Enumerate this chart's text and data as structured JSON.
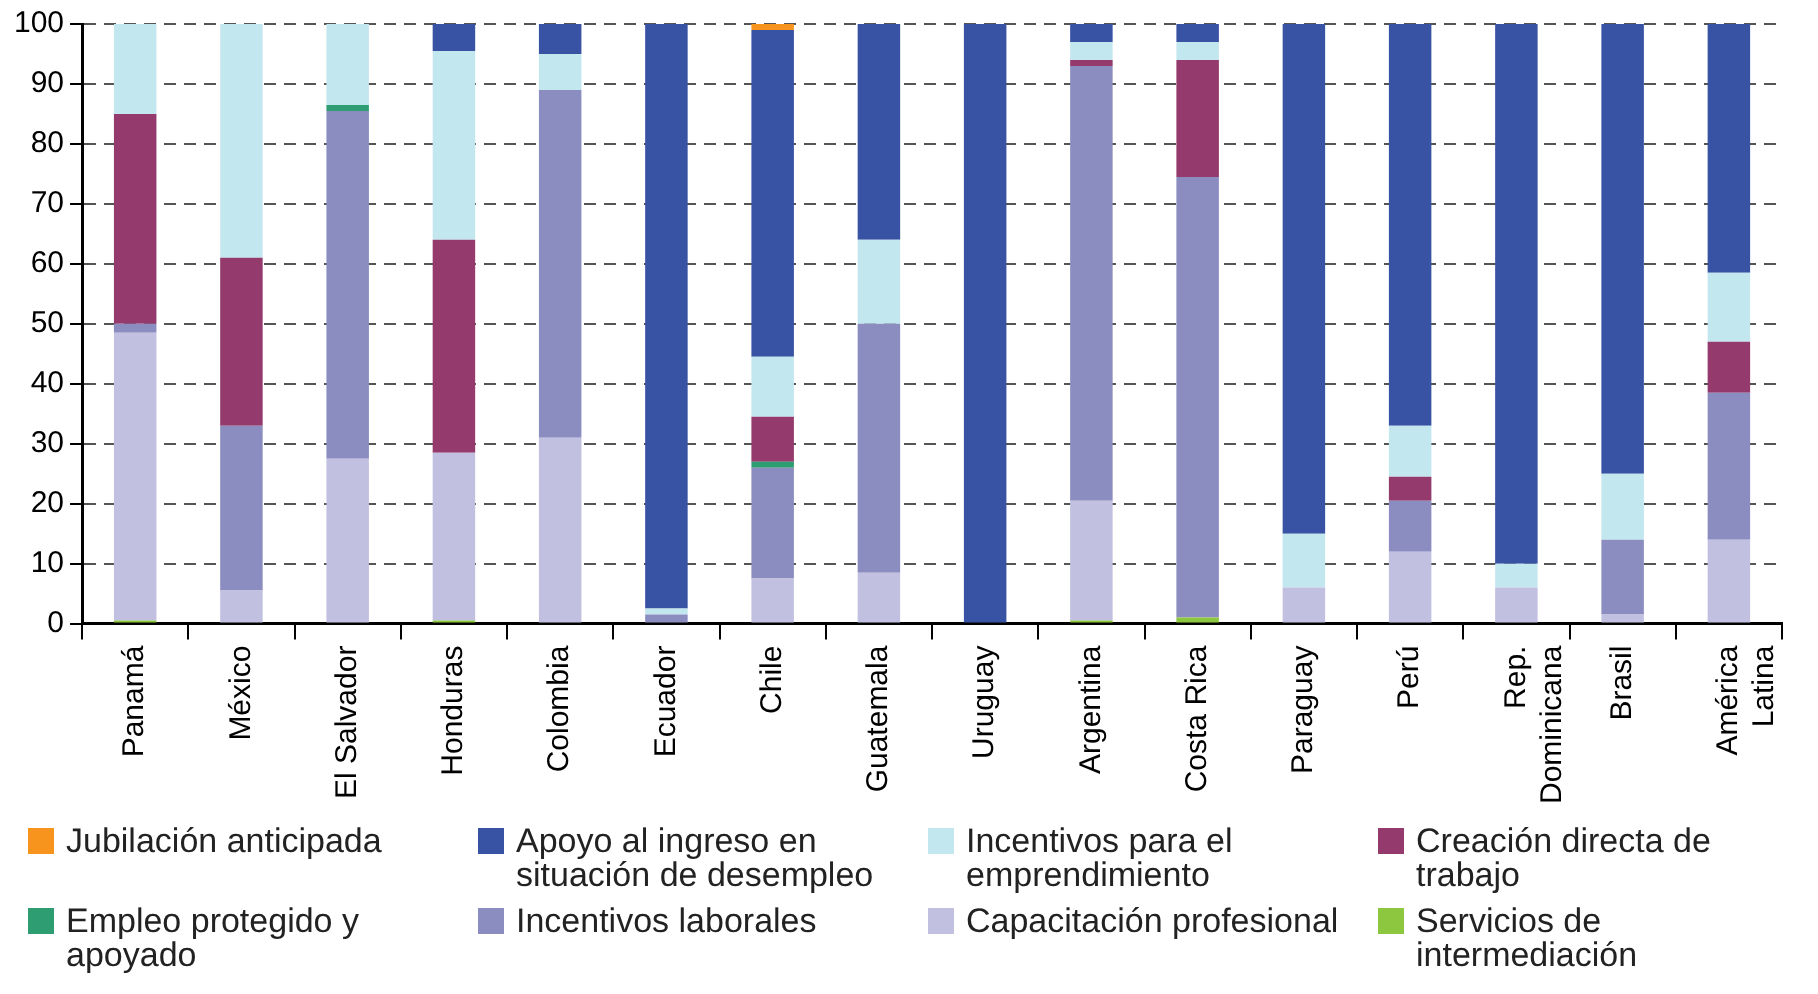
{
  "chart_data": {
    "type": "bar",
    "stacked": true,
    "categories": [
      "Panamá",
      "México",
      "El Salvador",
      "Honduras",
      "Colombia",
      "Ecuador",
      "Chile",
      "Guatemala",
      "Uruguay",
      "Argentina",
      "Costa Rica",
      "Paraguay",
      "Perú",
      "Rep.\nDominicana",
      "Brasil",
      "América\nLatina"
    ],
    "series": [
      {
        "name": "Servicios de intermediación",
        "color": "#8dc63f",
        "values": [
          0.5,
          0,
          0,
          0.5,
          null,
          0,
          null,
          0,
          0,
          0.5,
          1,
          0,
          0,
          0,
          0,
          null
        ]
      },
      {
        "name": "Capacitación profesional",
        "color": "#c1c0e0",
        "values": [
          48,
          5.5,
          27.5,
          28,
          31,
          null,
          7.5,
          8.5,
          0,
          20,
          null,
          6,
          12,
          6,
          1.5,
          14
        ]
      },
      {
        "name": "Incentivos laborales",
        "color": "#8b8dc1",
        "values": [
          1.5,
          27.5,
          58,
          0,
          58,
          1.5,
          18.5,
          41.5,
          0,
          72.5,
          73.5,
          0,
          8.5,
          0,
          12.5,
          24.5
        ]
      },
      {
        "name": "Empleo protegido y apoyado",
        "color": "#2e9e72",
        "values": [
          0,
          0,
          1,
          0,
          0,
          0,
          1,
          0,
          0,
          0,
          0,
          0,
          0,
          0,
          0,
          0
        ]
      },
      {
        "name": "Creación directa de trabajo",
        "color": "#943a6c",
        "values": [
          35,
          28,
          0,
          35.5,
          0,
          0,
          7.5,
          0,
          0,
          1,
          19.5,
          0,
          4,
          0,
          0,
          8.5
        ]
      },
      {
        "name": "Incentivos para el emprendimiento",
        "color": "#c3e7ef",
        "values": [
          15,
          39,
          13.5,
          31.5,
          6,
          1,
          10,
          14,
          0,
          3,
          3,
          9,
          8.5,
          4,
          11,
          11.5
        ]
      },
      {
        "name": "Apoyo al ingreso en situación de desempleo",
        "color": "#3953a4",
        "values": [
          0,
          0,
          0,
          4.5,
          5,
          97.5,
          54.5,
          36,
          100,
          3,
          3,
          85,
          67,
          90,
          75,
          41.5
        ]
      },
      {
        "name": "Jubilación anticipada",
        "color": "#f7941d",
        "values": [
          0,
          0,
          0,
          0,
          0,
          0,
          1,
          0,
          0,
          0,
          0,
          0,
          0,
          0,
          0,
          0
        ]
      }
    ],
    "ylim": [
      0,
      100
    ],
    "yticks": [
      0,
      10,
      20,
      30,
      40,
      50,
      60,
      70,
      80,
      90,
      100
    ],
    "grid": "y",
    "legend": "bottom"
  }
}
